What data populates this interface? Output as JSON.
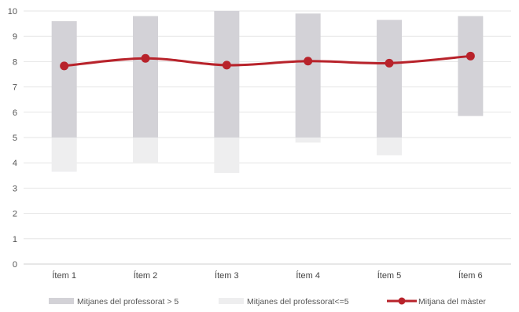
{
  "chart_data": {
    "type": "bar",
    "categories": [
      "Ítem 1",
      "Ítem 2",
      "Ítem 3",
      "Ítem 4",
      "Ítem 5",
      "Ítem 6"
    ],
    "ylim": [
      0,
      10
    ],
    "yticks": [
      0,
      1,
      2,
      3,
      4,
      5,
      6,
      7,
      8,
      9,
      10
    ],
    "grid": true,
    "legend_position": "bottom",
    "series": [
      {
        "name": "Mitjanes del professorat > 5",
        "kind": "range-bar",
        "color": "#d3d2d7",
        "ranges": [
          [
            5,
            9.6
          ],
          [
            5,
            9.8
          ],
          [
            5,
            10.0
          ],
          [
            5,
            9.9
          ],
          [
            5,
            9.65
          ],
          [
            5.85,
            9.8
          ]
        ]
      },
      {
        "name": "Mitjanes del professorat<=5",
        "kind": "range-bar",
        "color": "#eeeeef",
        "ranges": [
          [
            3.65,
            5
          ],
          [
            4.0,
            5
          ],
          [
            3.6,
            5
          ],
          [
            4.8,
            5
          ],
          [
            4.3,
            5
          ],
          null
        ]
      },
      {
        "name": "Mitjana del màster",
        "kind": "line",
        "color": "#b8232b",
        "values": [
          7.83,
          8.13,
          7.86,
          8.02,
          7.94,
          8.22
        ]
      }
    ]
  }
}
